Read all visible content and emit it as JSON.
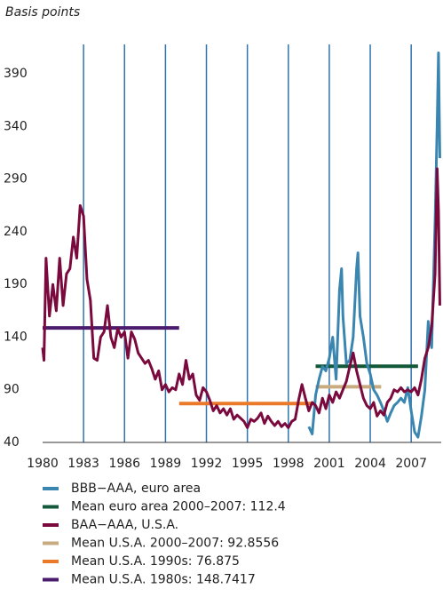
{
  "chart_data": {
    "type": "line",
    "y_label": "Basis points",
    "xlim": [
      1980,
      2009.2
    ],
    "ylim": [
      40,
      418
    ],
    "xticks": [
      1980,
      1983,
      1986,
      1989,
      1992,
      1995,
      1998,
      2001,
      2004,
      2007
    ],
    "yticks": [
      40,
      90,
      140,
      190,
      240,
      290,
      340,
      390
    ],
    "grid": "x",
    "grid_color": "#2f74b0",
    "series": [
      {
        "name": "BBB−AAA, euro area",
        "color": "#3a86b0",
        "x": [
          1999.5,
          1999.75,
          2000.0,
          2000.25,
          2000.5,
          2000.75,
          2001.0,
          2001.25,
          2001.5,
          2001.75,
          2001.9,
          2002.0,
          2002.25,
          2002.5,
          2002.75,
          2003.0,
          2003.1,
          2003.25,
          2003.5,
          2003.75,
          2004.0,
          2004.25,
          2004.5,
          2004.75,
          2005.0,
          2005.25,
          2005.5,
          2005.75,
          2006.0,
          2006.25,
          2006.5,
          2006.75,
          2007.0,
          2007.25,
          2007.5,
          2007.75,
          2008.0,
          2008.25,
          2008.5,
          2008.75,
          2008.9,
          2009.0,
          2009.1
        ],
        "values": [
          55,
          48,
          85,
          100,
          112,
          108,
          120,
          140,
          100,
          185,
          205,
          160,
          115,
          118,
          140,
          205,
          220,
          160,
          140,
          115,
          105,
          90,
          85,
          78,
          70,
          60,
          68,
          75,
          78,
          82,
          78,
          92,
          70,
          50,
          45,
          65,
          90,
          155,
          130,
          250,
          340,
          410,
          310
        ]
      },
      {
        "name": "Mean euro area 2000–2007: 112.4",
        "color": "#14583a",
        "x": [
          2000,
          2007.5
        ],
        "values": [
          112.4,
          112.4
        ]
      },
      {
        "name": "BAA−AAA, U.S.A.",
        "color": "#7a0a3d",
        "x": [
          1980.0,
          1980.1,
          1980.25,
          1980.5,
          1980.75,
          1981.0,
          1981.25,
          1981.5,
          1981.75,
          1982.0,
          1982.25,
          1982.5,
          1982.75,
          1983.0,
          1983.25,
          1983.5,
          1983.75,
          1984.0,
          1984.25,
          1984.5,
          1984.75,
          1985.0,
          1985.25,
          1985.5,
          1985.75,
          1986.0,
          1986.25,
          1986.5,
          1986.75,
          1987.0,
          1987.25,
          1987.5,
          1987.75,
          1988.0,
          1988.25,
          1988.5,
          1988.75,
          1989.0,
          1989.25,
          1989.5,
          1989.75,
          1990.0,
          1990.25,
          1990.5,
          1990.75,
          1991.0,
          1991.25,
          1991.5,
          1991.75,
          1992.0,
          1992.25,
          1992.5,
          1992.75,
          1993.0,
          1993.25,
          1993.5,
          1993.75,
          1994.0,
          1994.25,
          1994.5,
          1994.75,
          1995.0,
          1995.25,
          1995.5,
          1995.75,
          1996.0,
          1996.25,
          1996.5,
          1996.75,
          1997.0,
          1997.25,
          1997.5,
          1997.75,
          1998.0,
          1998.25,
          1998.5,
          1998.75,
          1999.0,
          1999.25,
          1999.5,
          1999.75,
          2000.0,
          2000.25,
          2000.5,
          2000.75,
          2001.0,
          2001.25,
          2001.5,
          2001.75,
          2002.0,
          2002.25,
          2002.5,
          2002.75,
          2003.0,
          2003.25,
          2003.5,
          2003.75,
          2004.0,
          2004.25,
          2004.5,
          2004.75,
          2005.0,
          2005.25,
          2005.5,
          2005.75,
          2006.0,
          2006.25,
          2006.5,
          2006.75,
          2007.0,
          2007.25,
          2007.5,
          2007.75,
          2008.0,
          2008.25,
          2008.5,
          2008.75,
          2008.9,
          2009.0,
          2009.1
        ],
        "values": [
          130,
          118,
          215,
          160,
          190,
          165,
          215,
          170,
          200,
          205,
          235,
          215,
          265,
          255,
          195,
          175,
          120,
          118,
          140,
          145,
          170,
          140,
          130,
          148,
          140,
          145,
          120,
          145,
          138,
          125,
          120,
          115,
          118,
          110,
          100,
          108,
          90,
          95,
          88,
          92,
          90,
          105,
          95,
          118,
          100,
          105,
          85,
          80,
          92,
          88,
          80,
          70,
          75,
          68,
          72,
          66,
          72,
          62,
          66,
          63,
          60,
          54,
          62,
          60,
          63,
          68,
          58,
          65,
          60,
          56,
          60,
          55,
          58,
          54,
          60,
          62,
          80,
          95,
          82,
          70,
          78,
          75,
          68,
          82,
          72,
          85,
          78,
          88,
          82,
          90,
          98,
          112,
          125,
          108,
          95,
          82,
          75,
          72,
          78,
          65,
          70,
          66,
          78,
          82,
          90,
          88,
          92,
          88,
          90,
          88,
          92,
          85,
          100,
          120,
          130,
          150,
          200,
          300,
          260,
          170
        ]
      },
      {
        "name": "Mean U.S.A. 2000–2007: 92.8556",
        "color": "#c9ab80",
        "x": [
          2000,
          2004.8
        ],
        "values": [
          92.8556,
          92.8556
        ]
      },
      {
        "name": "Mean U.S.A. 1990s: 76.875",
        "color": "#ea7a2a",
        "x": [
          1990,
          2000
        ],
        "values": [
          76.875,
          76.875
        ]
      },
      {
        "name": "Mean U.S.A. 1980s: 148.7417",
        "color": "#4b1c6d",
        "x": [
          1980,
          1990
        ],
        "values": [
          148.7417,
          148.7417
        ]
      }
    ]
  }
}
